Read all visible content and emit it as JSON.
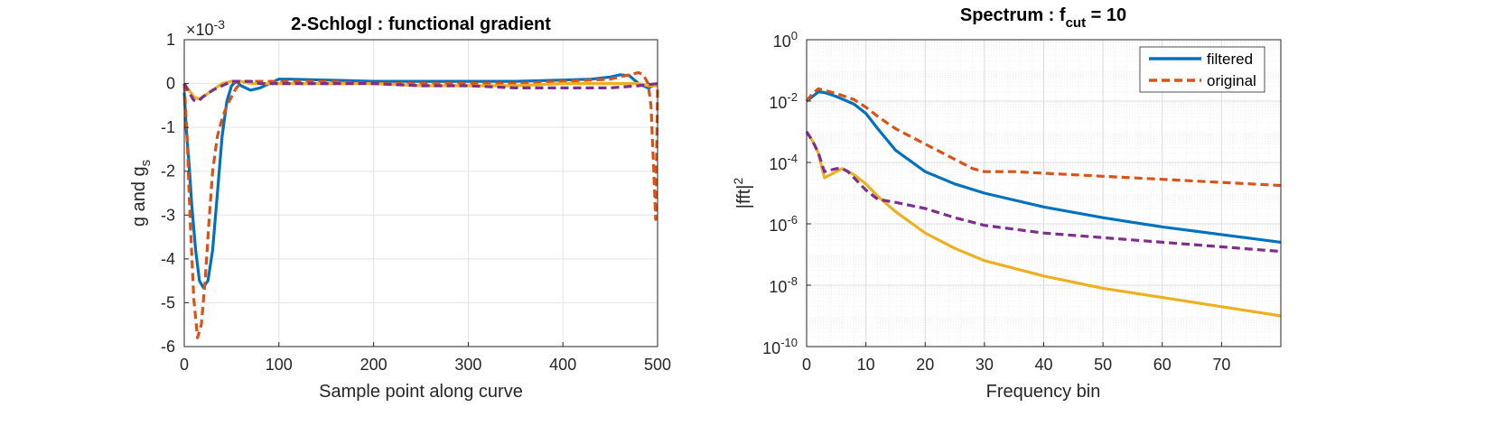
{
  "chart_data": [
    {
      "type": "line",
      "title": "2-Schlogl : functional gradient",
      "xlabel": "Sample point along curve",
      "ylabel_main": "g and g",
      "ylabel_sub": "s",
      "exponent_label": "×10",
      "exponent_power": "-3",
      "xlim": [
        0,
        500
      ],
      "ylim": [
        -6,
        1
      ],
      "xticks": [
        "0",
        "100",
        "200",
        "300",
        "400",
        "500"
      ],
      "yticks": [
        "1",
        "0",
        "-1",
        "-2",
        "-3",
        "-4",
        "-5",
        "-6"
      ],
      "grid": true,
      "series": [
        {
          "color": "#0072BD",
          "dash": "solid",
          "x": [
            0,
            2,
            5,
            8,
            12,
            16,
            20,
            25,
            30,
            35,
            40,
            45,
            50,
            55,
            60,
            70,
            80,
            90,
            100,
            110,
            150,
            200,
            250,
            300,
            350,
            400,
            430,
            450,
            460,
            470,
            480,
            490,
            495,
            500
          ],
          "y": [
            -0.2,
            -1.0,
            -1.8,
            -2.8,
            -3.8,
            -4.5,
            -4.65,
            -4.5,
            -3.8,
            -2.5,
            -1.2,
            -0.4,
            -0.05,
            0.05,
            -0.05,
            -0.15,
            -0.1,
            0.0,
            0.1,
            0.1,
            0.08,
            0.05,
            0.05,
            0.05,
            0.05,
            0.08,
            0.1,
            0.15,
            0.2,
            0.18,
            0.0,
            -0.1,
            -0.05,
            0.0
          ]
        },
        {
          "color": "#D95319",
          "dash": "dashed",
          "x": [
            0,
            3,
            6,
            10,
            14,
            18,
            22,
            26,
            30,
            35,
            40,
            45,
            50,
            55,
            60,
            65,
            70,
            80,
            100,
            150,
            200,
            250,
            300,
            350,
            400,
            450,
            470,
            480,
            485,
            490,
            493,
            496,
            498,
            499,
            500
          ],
          "y": [
            0,
            -1.2,
            -3.0,
            -4.9,
            -5.8,
            -5.5,
            -4.5,
            -3.2,
            -2.0,
            -1.2,
            -0.8,
            -0.5,
            -0.3,
            -0.1,
            0.0,
            0.05,
            0.05,
            0.05,
            0.05,
            0.05,
            0.0,
            0.0,
            0.0,
            0.0,
            0.05,
            0.1,
            0.2,
            0.25,
            0.2,
            0.0,
            -0.5,
            -2.0,
            -3.1,
            -1.5,
            -0.1
          ]
        },
        {
          "color": "#EDB120",
          "dash": "solid",
          "x": [
            0,
            5,
            10,
            15,
            20,
            30,
            40,
            50,
            60,
            70,
            80,
            100,
            150,
            200,
            250,
            300,
            350,
            400,
            450,
            480,
            490,
            500
          ],
          "y": [
            0,
            -0.15,
            -0.3,
            -0.35,
            -0.3,
            -0.15,
            0.0,
            0.05,
            0.05,
            0.0,
            0.0,
            0.0,
            0.0,
            0.0,
            -0.05,
            -0.05,
            -0.05,
            0.0,
            0.0,
            0.0,
            -0.05,
            -0.05
          ]
        },
        {
          "color": "#7E2F8E",
          "dash": "dashed",
          "x": [
            0,
            5,
            10,
            15,
            20,
            30,
            40,
            50,
            60,
            70,
            80,
            100,
            150,
            200,
            250,
            300,
            350,
            400,
            450,
            480,
            500
          ],
          "y": [
            0,
            -0.2,
            -0.38,
            -0.4,
            -0.3,
            -0.15,
            -0.05,
            0.05,
            0.05,
            0.05,
            0.0,
            0.0,
            0.0,
            0.0,
            -0.05,
            -0.05,
            -0.1,
            -0.1,
            -0.1,
            -0.05,
            0.0
          ]
        }
      ]
    },
    {
      "type": "line",
      "title_main": "Spectrum : f",
      "title_sub": "cut",
      "title_tail": " = 10",
      "xlabel": "Frequency bin",
      "ylabel_main": "|fft|",
      "ylabel_sup": "2",
      "xlim": [
        0,
        80
      ],
      "ylim_log10": [
        -10,
        0
      ],
      "yscale": "log",
      "xticks": [
        "0",
        "10",
        "20",
        "30",
        "40",
        "50",
        "60",
        "70"
      ],
      "yticks_base": "10",
      "yticks_exp": [
        "0",
        "-2",
        "-4",
        "-6",
        "-8",
        "-10"
      ],
      "grid": true,
      "minor_grid": true,
      "legend_position": "top-right",
      "legend": [
        "filtered",
        "original"
      ],
      "series": [
        {
          "name": "filtered",
          "color": "#0072BD",
          "dash": "solid",
          "x": [
            0,
            1,
            2,
            3,
            5,
            8,
            10,
            12,
            15,
            20,
            25,
            30,
            40,
            50,
            60,
            70,
            80
          ],
          "log10y": [
            -2.0,
            -1.85,
            -1.7,
            -1.72,
            -1.85,
            -2.1,
            -2.4,
            -2.9,
            -3.6,
            -4.3,
            -4.7,
            -5.0,
            -5.45,
            -5.8,
            -6.1,
            -6.35,
            -6.6
          ]
        },
        {
          "name": "original",
          "color": "#D95319",
          "dash": "dashed",
          "x": [
            0,
            1,
            2,
            3,
            5,
            8,
            10,
            12,
            15,
            20,
            25,
            28,
            30,
            35,
            40,
            50,
            60,
            70,
            80
          ],
          "log10y": [
            -2.0,
            -1.75,
            -1.6,
            -1.65,
            -1.75,
            -1.95,
            -2.2,
            -2.5,
            -2.9,
            -3.4,
            -3.9,
            -4.2,
            -4.3,
            -4.3,
            -4.35,
            -4.45,
            -4.55,
            -4.65,
            -4.75
          ]
        },
        {
          "color": "#EDB120",
          "dash": "solid",
          "x": [
            0,
            1,
            2,
            3,
            4,
            5,
            6,
            7,
            8,
            10,
            12,
            15,
            20,
            25,
            30,
            40,
            50,
            60,
            70,
            80
          ],
          "log10y": [
            -3.0,
            -3.3,
            -3.7,
            -4.5,
            -4.4,
            -4.3,
            -4.2,
            -4.3,
            -4.4,
            -4.7,
            -5.1,
            -5.6,
            -6.3,
            -6.8,
            -7.2,
            -7.7,
            -8.1,
            -8.4,
            -8.7,
            -9.0
          ]
        },
        {
          "color": "#7E2F8E",
          "dash": "dashed",
          "x": [
            0,
            1,
            2,
            3,
            4,
            5,
            6,
            7,
            8,
            10,
            12,
            15,
            20,
            25,
            30,
            40,
            50,
            60,
            70,
            80
          ],
          "log10y": [
            -3.0,
            -3.3,
            -3.7,
            -4.3,
            -4.25,
            -4.2,
            -4.2,
            -4.3,
            -4.5,
            -4.9,
            -5.2,
            -5.3,
            -5.5,
            -5.8,
            -6.05,
            -6.3,
            -6.45,
            -6.6,
            -6.75,
            -6.9
          ]
        }
      ]
    }
  ]
}
